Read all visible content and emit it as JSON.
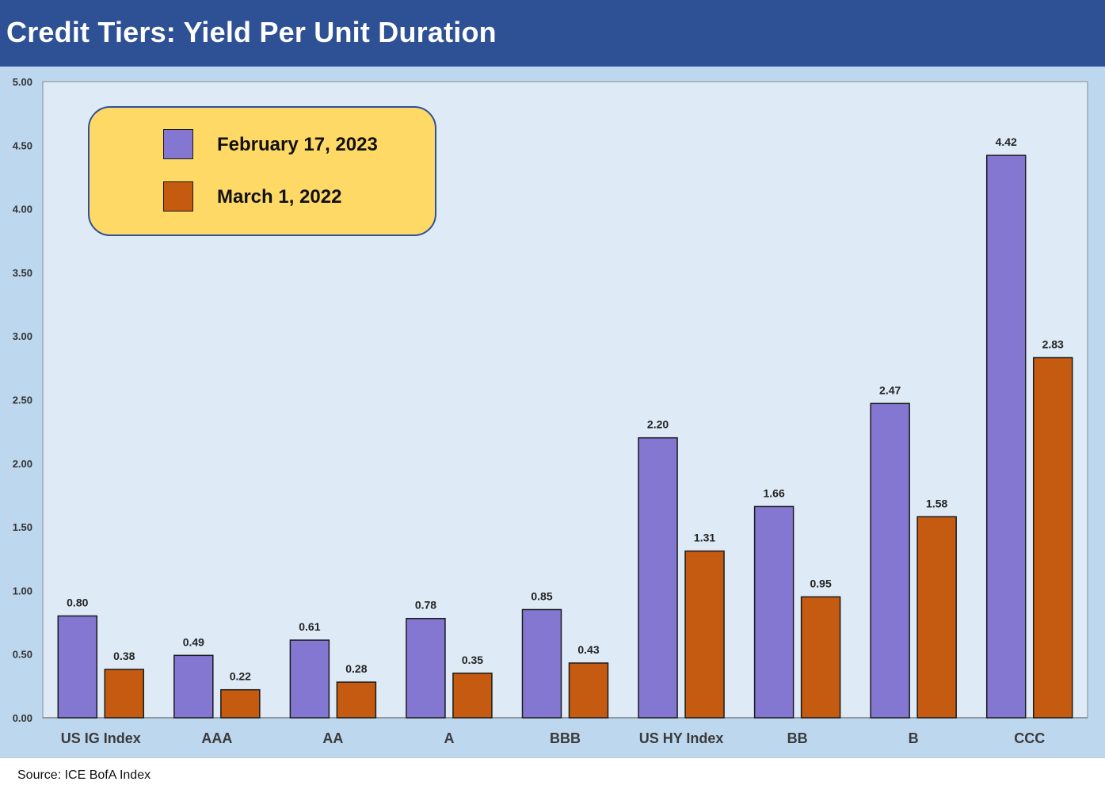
{
  "header": {
    "title": "Credit Tiers: Yield Per Unit Duration"
  },
  "footer": {
    "source": "Source: ICE BofA Index"
  },
  "colors": {
    "header_bg": "#2e5196",
    "chart_bg": "#bdd7ee",
    "plot_bg": "#deebf7",
    "legend_bg": "#ffd966"
  },
  "chart_data": {
    "type": "bar",
    "title": "Credit Tiers: Yield Per Unit Duration",
    "categories": [
      "US IG Index",
      "AAA",
      "AA",
      "A",
      "BBB",
      "US HY Index",
      "BB",
      "B",
      "CCC"
    ],
    "series": [
      {
        "name": "February 17, 2023",
        "color": "#8377d1",
        "values": [
          0.8,
          0.49,
          0.61,
          0.78,
          0.85,
          2.2,
          1.66,
          2.47,
          4.42
        ]
      },
      {
        "name": "March 1, 2022",
        "color": "#c55a11",
        "values": [
          0.38,
          0.22,
          0.28,
          0.35,
          0.43,
          1.31,
          0.95,
          1.58,
          2.83
        ]
      }
    ],
    "ylim": [
      0,
      5
    ],
    "yticks": [
      "0.00",
      "0.50",
      "1.00",
      "1.50",
      "2.00",
      "2.50",
      "3.00",
      "3.50",
      "4.00",
      "4.50",
      "5.00"
    ],
    "xlabel": "",
    "ylabel": "",
    "legend_position": "top-left",
    "grid": false
  }
}
